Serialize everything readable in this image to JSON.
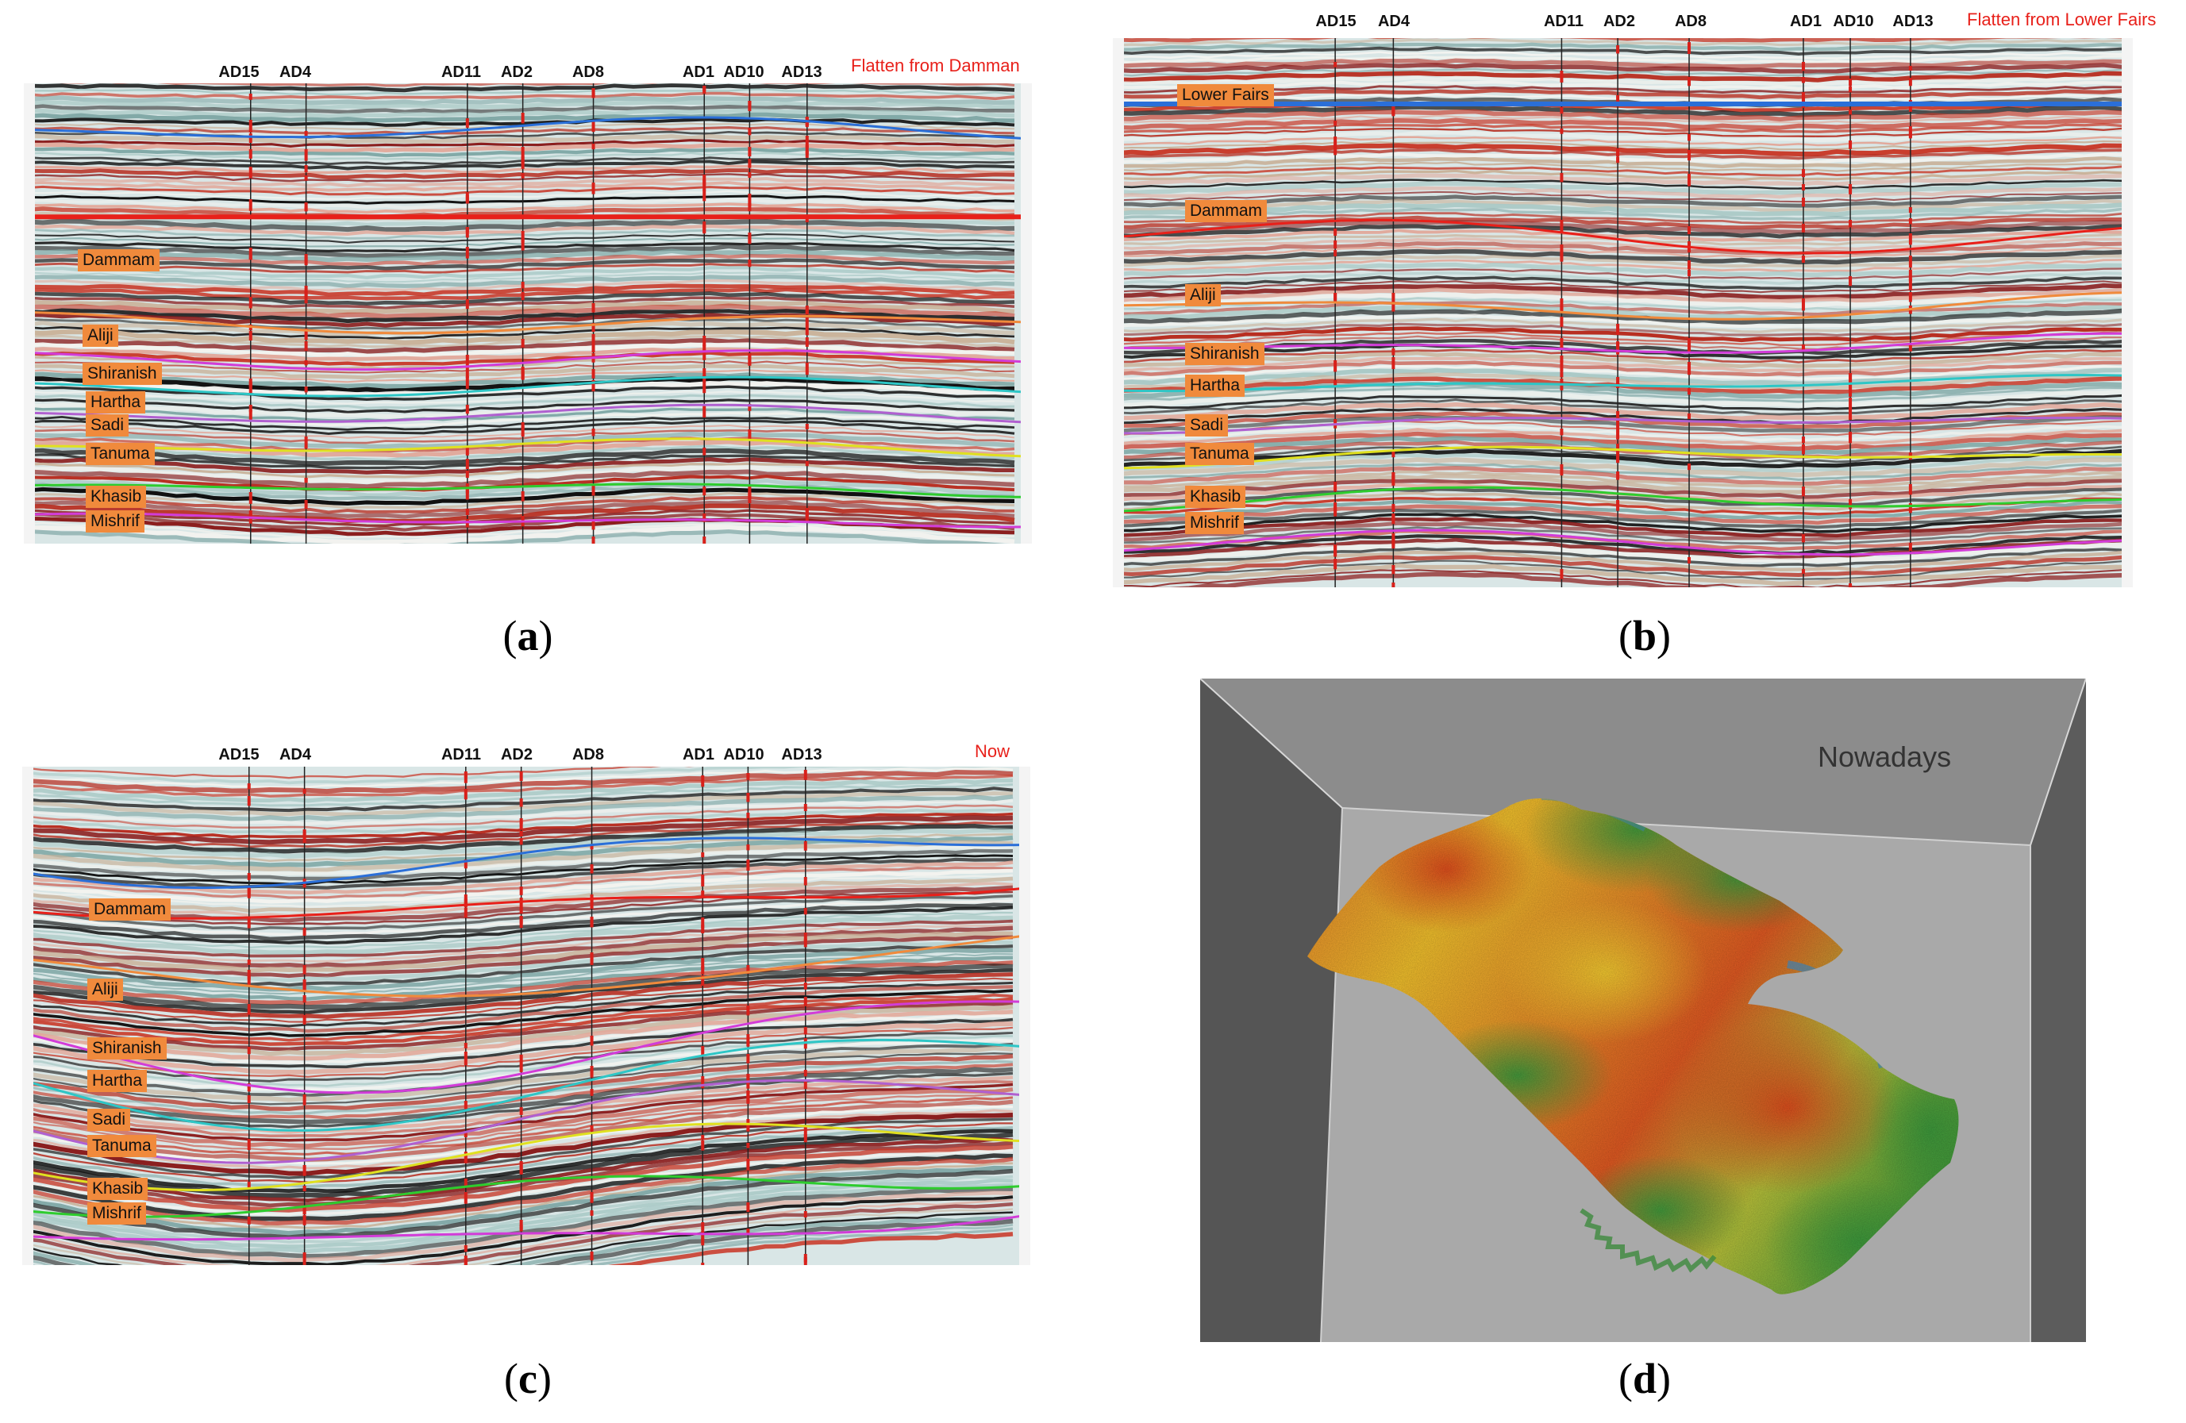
{
  "panels": {
    "a": {
      "note": "Flatten from Damman",
      "caption_letter": "a",
      "wells": [
        "AD15",
        "AD4",
        "AD11",
        "AD2",
        "AD8",
        "AD1",
        "AD10",
        "AD13"
      ],
      "formations": [
        "Dammam",
        "Aliji",
        "Shiranish",
        "Hartha",
        "Sadi",
        "Tanuma",
        "Khasib",
        "Mishrif"
      ]
    },
    "b": {
      "note": "Flatten from Lower Fairs",
      "caption_letter": "b",
      "wells": [
        "AD15",
        "AD4",
        "AD11",
        "AD2",
        "AD8",
        "AD1",
        "AD10",
        "AD13"
      ],
      "formations": [
        "Lower Fairs",
        "Dammam",
        "Aliji",
        "Shiranish",
        "Hartha",
        "Sadi",
        "Tanuma",
        "Khasib",
        "Mishrif"
      ]
    },
    "c": {
      "note": "Now",
      "caption_letter": "c",
      "wells": [
        "AD15",
        "AD4",
        "AD11",
        "AD2",
        "AD8",
        "AD1",
        "AD10",
        "AD13"
      ],
      "formations": [
        "Dammam",
        "Aliji",
        "Shiranish",
        "Hartha",
        "Sadi",
        "Tanuma",
        "Khasib",
        "Mishrif"
      ]
    },
    "d": {
      "title": "Nowadays",
      "caption_letter": "d"
    }
  },
  "colors": {
    "label_bg": "#f08a3c",
    "note": "#e8201a",
    "horizons": {
      "Lower Fairs": "#2a6fd8",
      "Dammam": "#e8201a",
      "Aliji": "#f08a3c",
      "Shiranish": "#d23cd8",
      "Hartha": "#2ec6c6",
      "Sadi": "#b060d0",
      "Tanuma": "#e0e020",
      "Khasib": "#2ecc2e",
      "Mishrif": "#d23cd8"
    }
  }
}
